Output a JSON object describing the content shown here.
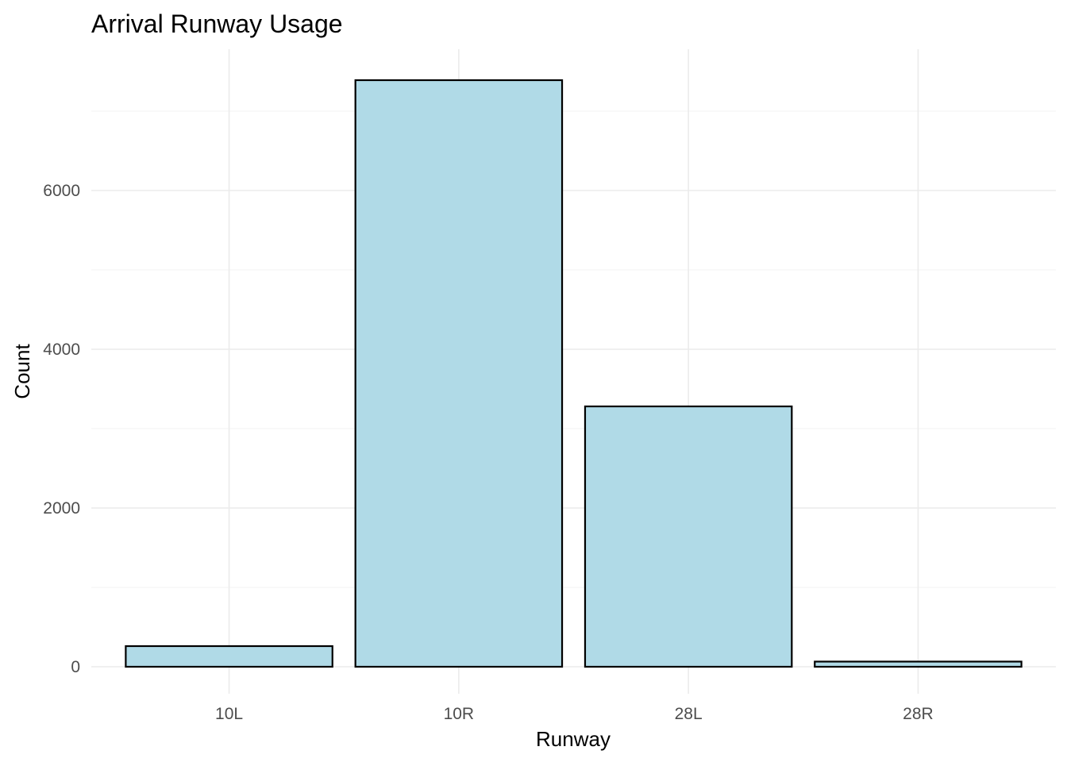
{
  "chart_data": {
    "type": "bar",
    "title": "Arrival Runway Usage",
    "xlabel": "Runway",
    "ylabel": "Count",
    "categories": [
      "10L",
      "10R",
      "28L",
      "28R"
    ],
    "values": [
      260,
      7390,
      3280,
      65
    ],
    "ylim": [
      -340,
      7780
    ],
    "yticks": [
      0,
      2000,
      4000,
      6000
    ],
    "yticks_minor": [
      1000,
      3000,
      5000,
      7000
    ],
    "ytick_labels": [
      "0",
      "2000",
      "4000",
      "6000"
    ],
    "grid": true,
    "bar_fill": "#add8e6",
    "bar_outline": "#000000"
  }
}
